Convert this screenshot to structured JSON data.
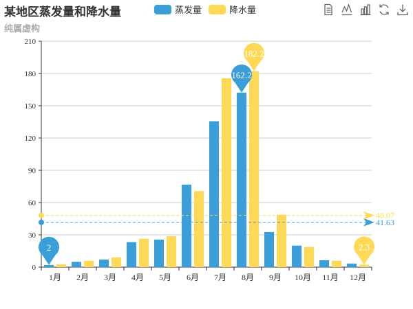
{
  "title": "某地区蒸发量和降水量",
  "subtitle": "纯属虚构",
  "legend": [
    {
      "name": "蒸发量",
      "color": "#3a9fd8"
    },
    {
      "name": "降水量",
      "color": "#fed957"
    }
  ],
  "toolbox": [
    "data-view-icon",
    "line-chart-icon",
    "bar-chart-icon",
    "restore-icon",
    "save-image-icon"
  ],
  "chart_data": {
    "type": "bar",
    "categories": [
      "1月",
      "2月",
      "3月",
      "4月",
      "5月",
      "6月",
      "7月",
      "8月",
      "9月",
      "10月",
      "11月",
      "12月"
    ],
    "series": [
      {
        "name": "蒸发量",
        "color": "#3a9fd8",
        "values": [
          2.0,
          4.9,
          7.0,
          23.2,
          25.6,
          76.7,
          135.6,
          162.2,
          32.6,
          20.0,
          6.4,
          3.3
        ],
        "mark_points": [
          {
            "label": "162.2",
            "index": 7,
            "value": 162.2
          },
          {
            "label": "2",
            "index": 0,
            "value": 2.0
          }
        ],
        "mark_line": {
          "label": "41.63",
          "value": 41.63
        }
      },
      {
        "name": "降水量",
        "color": "#fed957",
        "values": [
          2.6,
          5.9,
          9.0,
          26.4,
          28.7,
          70.7,
          175.6,
          182.2,
          48.7,
          18.8,
          6.0,
          2.3
        ],
        "mark_points": [
          {
            "label": "182.2",
            "index": 7,
            "value": 182.2
          },
          {
            "label": "2.3",
            "index": 11,
            "value": 2.3
          }
        ],
        "mark_line": {
          "label": "48.07",
          "value": 48.07
        }
      }
    ],
    "ylim": [
      0,
      210
    ],
    "yticks": [
      "0",
      "30",
      "60",
      "90",
      "120",
      "150",
      "180",
      "210"
    ],
    "grid": true,
    "legend_position": "top-center"
  }
}
